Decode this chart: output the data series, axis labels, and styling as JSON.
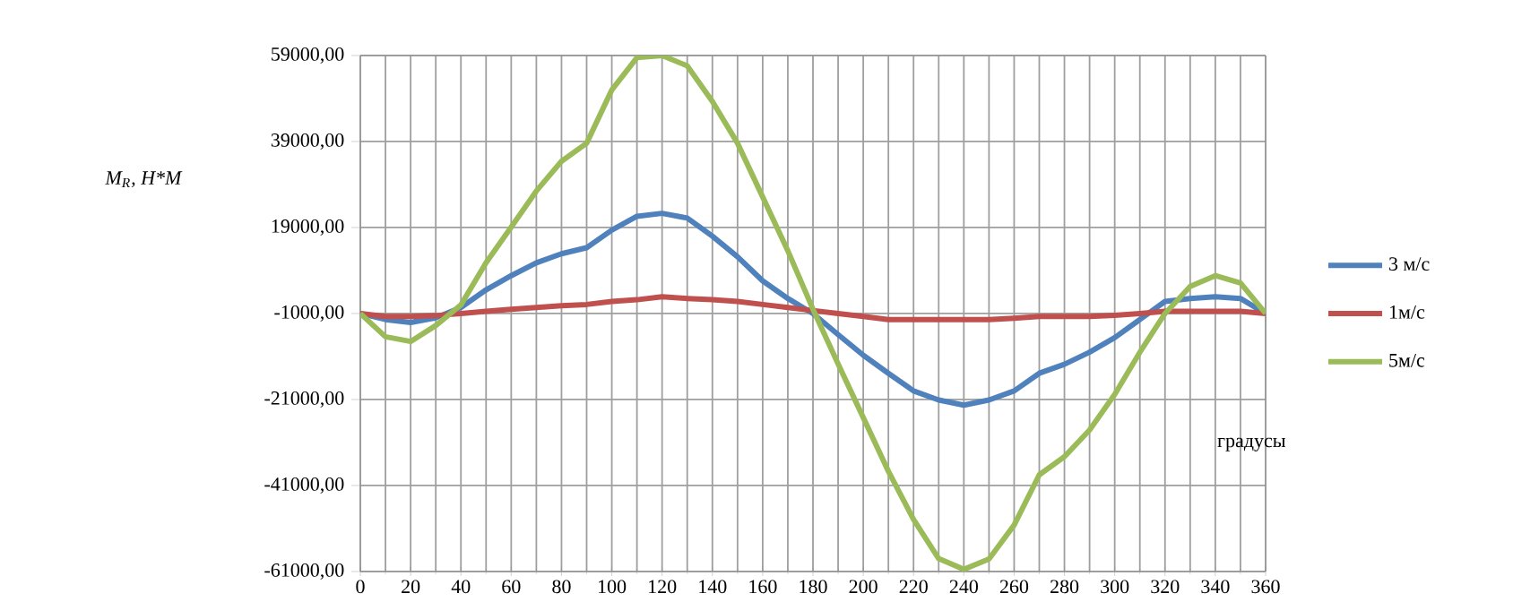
{
  "chart_data": {
    "type": "line",
    "ylabel": "M$_{R}$, H*M",
    "xlabel": "градусы",
    "x": [
      0,
      10,
      20,
      30,
      40,
      50,
      60,
      70,
      80,
      90,
      100,
      110,
      120,
      130,
      140,
      150,
      160,
      170,
      180,
      190,
      200,
      210,
      220,
      230,
      240,
      250,
      260,
      270,
      280,
      290,
      300,
      310,
      320,
      330,
      340,
      350,
      360
    ],
    "series": [
      {
        "name": "3 м/с",
        "color": "#4f81bd",
        "values": [
          -1000,
          -2400,
          -3100,
          -2000,
          400,
          4500,
          7800,
          10800,
          12900,
          14300,
          18400,
          21600,
          22300,
          21200,
          17000,
          12200,
          6600,
          2500,
          -1000,
          -5900,
          -10700,
          -14900,
          -19000,
          -21100,
          -22300,
          -21100,
          -19000,
          -14900,
          -12800,
          -10000,
          -6600,
          -2400,
          1800,
          2500,
          2900,
          2500,
          -1000
        ]
      },
      {
        "name": "1м/с",
        "color": "#c0504d",
        "values": [
          -1000,
          -1700,
          -1700,
          -1500,
          -1000,
          -500,
          0,
          400,
          800,
          1100,
          1800,
          2200,
          2900,
          2500,
          2200,
          1800,
          1100,
          400,
          -300,
          -1000,
          -1700,
          -2400,
          -2400,
          -2400,
          -2400,
          -2400,
          -2100,
          -1700,
          -1700,
          -1700,
          -1400,
          -1000,
          -500,
          -500,
          -500,
          -500,
          -1000
        ]
      },
      {
        "name": "5м/с",
        "color": "#9bbb59",
        "values": [
          -1000,
          -6400,
          -7500,
          -3800,
          1000,
          10800,
          19100,
          27500,
          34400,
          38600,
          51000,
          58500,
          59000,
          56600,
          48300,
          38600,
          26100,
          13600,
          0,
          -12700,
          -25200,
          -37700,
          -48900,
          -58000,
          -60500,
          -58100,
          -50200,
          -38500,
          -34300,
          -28100,
          -19800,
          -10000,
          -1000,
          5300,
          7800,
          6100,
          -1000
        ]
      }
    ],
    "xlim": [
      0,
      360
    ],
    "xticks": [
      0,
      20,
      40,
      60,
      80,
      100,
      120,
      140,
      160,
      180,
      200,
      220,
      240,
      260,
      280,
      300,
      320,
      340,
      360
    ],
    "ylim": [
      -61000,
      59000
    ],
    "yticks": [
      {
        "value": -61000,
        "label": "-61000,00"
      },
      {
        "value": -41000,
        "label": "-41000,00"
      },
      {
        "value": -21000,
        "label": "-21000,00"
      },
      {
        "value": -1000,
        "label": "-1000,00"
      },
      {
        "value": 19000,
        "label": "19000,00"
      },
      {
        "value": 39000,
        "label": "39000,00"
      },
      {
        "value": 59000,
        "label": "59000,00"
      }
    ],
    "grid": true,
    "legend": "right"
  }
}
